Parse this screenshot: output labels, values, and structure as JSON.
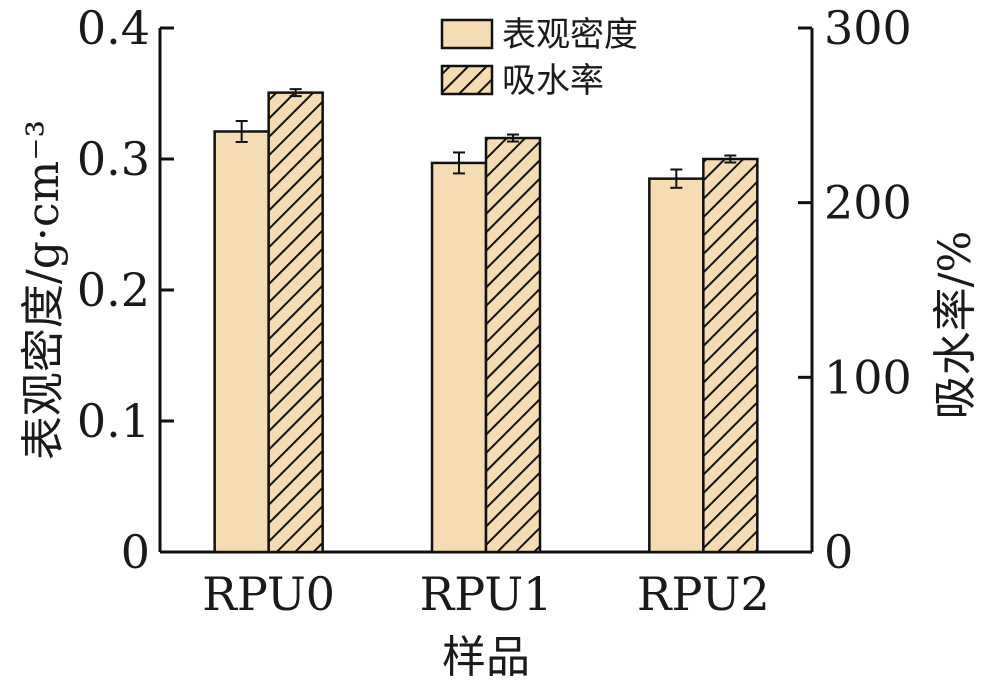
{
  "chart_data": {
    "type": "bar",
    "categories": [
      "RPU0",
      "RPU1",
      "RPU2"
    ],
    "xlabel": "样品",
    "ylabel_left": "表观密度/g·cm⁻³",
    "ylabel_right": "吸水率/%",
    "ylim_left": [
      0,
      0.4
    ],
    "ylim_right": [
      0,
      300
    ],
    "yticks_left": [
      "0",
      "0.1",
      "0.2",
      "0.3",
      "0.4"
    ],
    "yticks_right": [
      "0",
      "100",
      "200",
      "300"
    ],
    "legend_position": "top-center",
    "series": [
      {
        "name": "表观密度",
        "axis": "left",
        "fill": "#f6dcb3",
        "pattern": "solid",
        "values": [
          0.321,
          0.297,
          0.285
        ],
        "errors": [
          0.008,
          0.008,
          0.007
        ]
      },
      {
        "name": "吸水率",
        "axis": "right",
        "fill": "#f6dcb3",
        "pattern": "hatched",
        "values": [
          263,
          237,
          225
        ],
        "errors": [
          2,
          2,
          2
        ]
      }
    ]
  }
}
